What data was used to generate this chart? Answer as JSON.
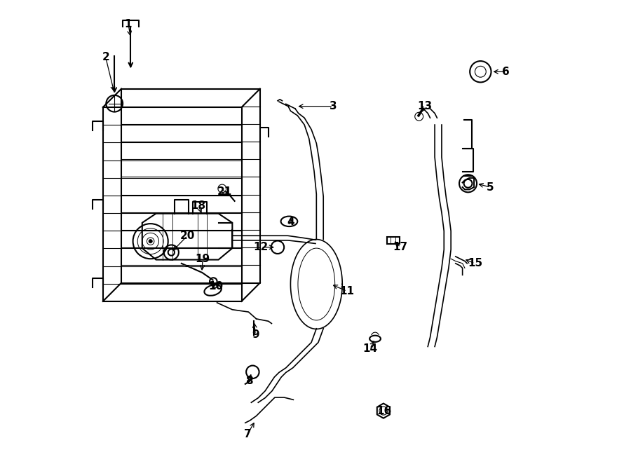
{
  "bg_color": "#ffffff",
  "line_color": "#000000",
  "line_width": 1.5,
  "figsize": [
    9.0,
    6.62
  ],
  "dpi": 100
}
